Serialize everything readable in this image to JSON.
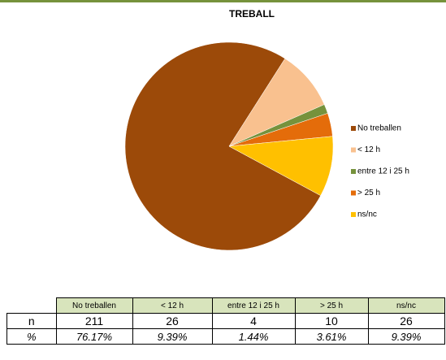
{
  "chart_data": {
    "type": "pie",
    "title": "TREBALL",
    "categories": [
      "No treballen",
      "< 12 h",
      "entre 12 i 25 h",
      "> 25 h",
      "ns/nc"
    ],
    "values": [
      211,
      26,
      4,
      10,
      26
    ],
    "colors": [
      "#9c4a09",
      "#f9c18f",
      "#76923c",
      "#e46c0a",
      "#ffc000"
    ],
    "legend": "right"
  },
  "table": {
    "columns": [
      "No treballen",
      "< 12 h",
      "entre 12 i 25 h",
      "> 25 h",
      "ns/nc"
    ],
    "rows": [
      {
        "label": "n",
        "cells": [
          "211",
          "26",
          "4",
          "10",
          "26"
        ]
      },
      {
        "label": "%",
        "cells": [
          "76.17%",
          "9.39%",
          "1.44%",
          "3.61%",
          "9.39%"
        ]
      }
    ]
  }
}
